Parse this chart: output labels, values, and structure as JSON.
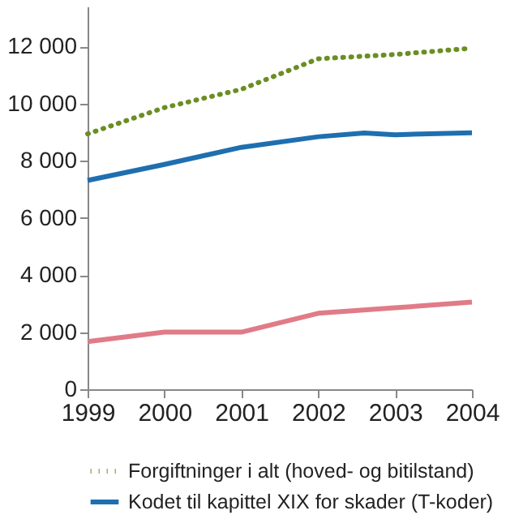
{
  "chart_data": {
    "type": "line",
    "x": [
      1999,
      2000,
      2001,
      2002,
      2003,
      2004
    ],
    "series": [
      {
        "name": "Forgiftninger i alt (hoved- og bitilstand)",
        "color": "#6b8e23",
        "line_style": "dotted",
        "values": [
          8940,
          9860,
          10500,
          11570,
          11720,
          11940
        ]
      },
      {
        "name": "Kodet til kapittel XIX for skader (T-koder)",
        "color": "#1f6fb0",
        "line_style": "solid",
        "x": [
          1999,
          2000,
          2001,
          2002,
          2002.6,
          2003,
          2004
        ],
        "values": [
          7310,
          7870,
          8470,
          8840,
          8970,
          8910,
          8980
        ]
      },
      {
        "color": "#e07b87",
        "line_style": "solid",
        "values": [
          1670,
          2000,
          2000,
          2660,
          2850,
          3050
        ]
      }
    ],
    "xlim": [
      1999,
      2004
    ],
    "xticks": [
      1999,
      2000,
      2001,
      2002,
      2003,
      2004
    ],
    "ylim": [
      0,
      13400
    ],
    "yticks": [
      0,
      {
        "value": 2000,
        "label": "2 000"
      },
      {
        "value": 4000,
        "label": "4 000"
      },
      {
        "value": 6000,
        "label": "6 000"
      },
      {
        "value": 8000,
        "label": "8 000"
      },
      {
        "value": 10000,
        "label": "10 000"
      },
      {
        "value": 12000,
        "label": "12 000"
      }
    ],
    "grid": false,
    "legend": "bottom"
  }
}
